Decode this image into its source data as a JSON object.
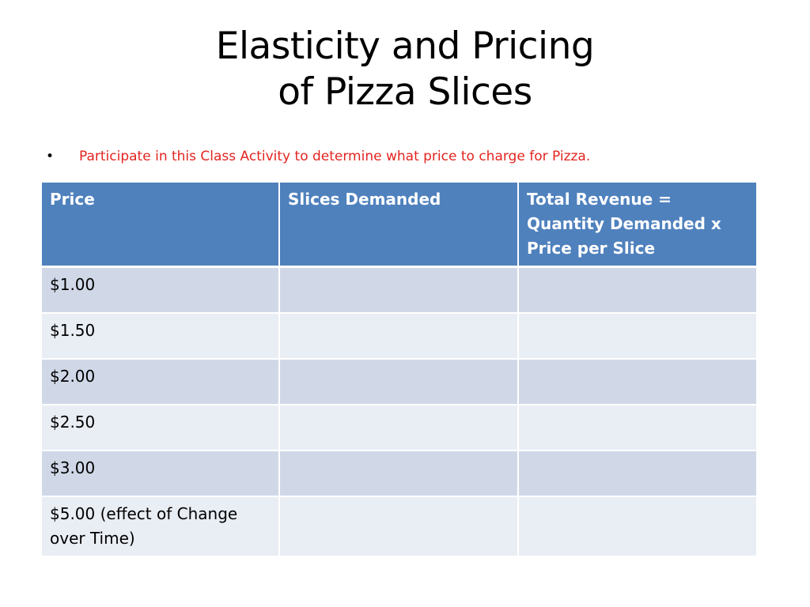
{
  "slide": {
    "title_line1": "Elasticity and Pricing",
    "title_line2": "of Pizza Slices",
    "bullet_marker": "•",
    "bullet_text": "Participate in this Class Activity to determine what price to charge for Pizza."
  },
  "table": {
    "headers": [
      "Price",
      "Slices Demanded",
      "Total Revenue = Quantity Demanded x Price per Slice"
    ],
    "rows": [
      [
        "$1.00",
        "",
        ""
      ],
      [
        "$1.50",
        "",
        ""
      ],
      [
        "$2.00",
        "",
        ""
      ],
      [
        "$2.50",
        "",
        ""
      ],
      [
        "$3.00",
        "",
        ""
      ],
      [
        "$5.00 (effect of Change over Time)",
        "",
        ""
      ]
    ]
  },
  "colors": {
    "header_fill": "#4f81bd",
    "row_odd_fill": "#d0d8e8",
    "row_even_fill": "#e9edf4",
    "bullet_text": "#e32420"
  }
}
